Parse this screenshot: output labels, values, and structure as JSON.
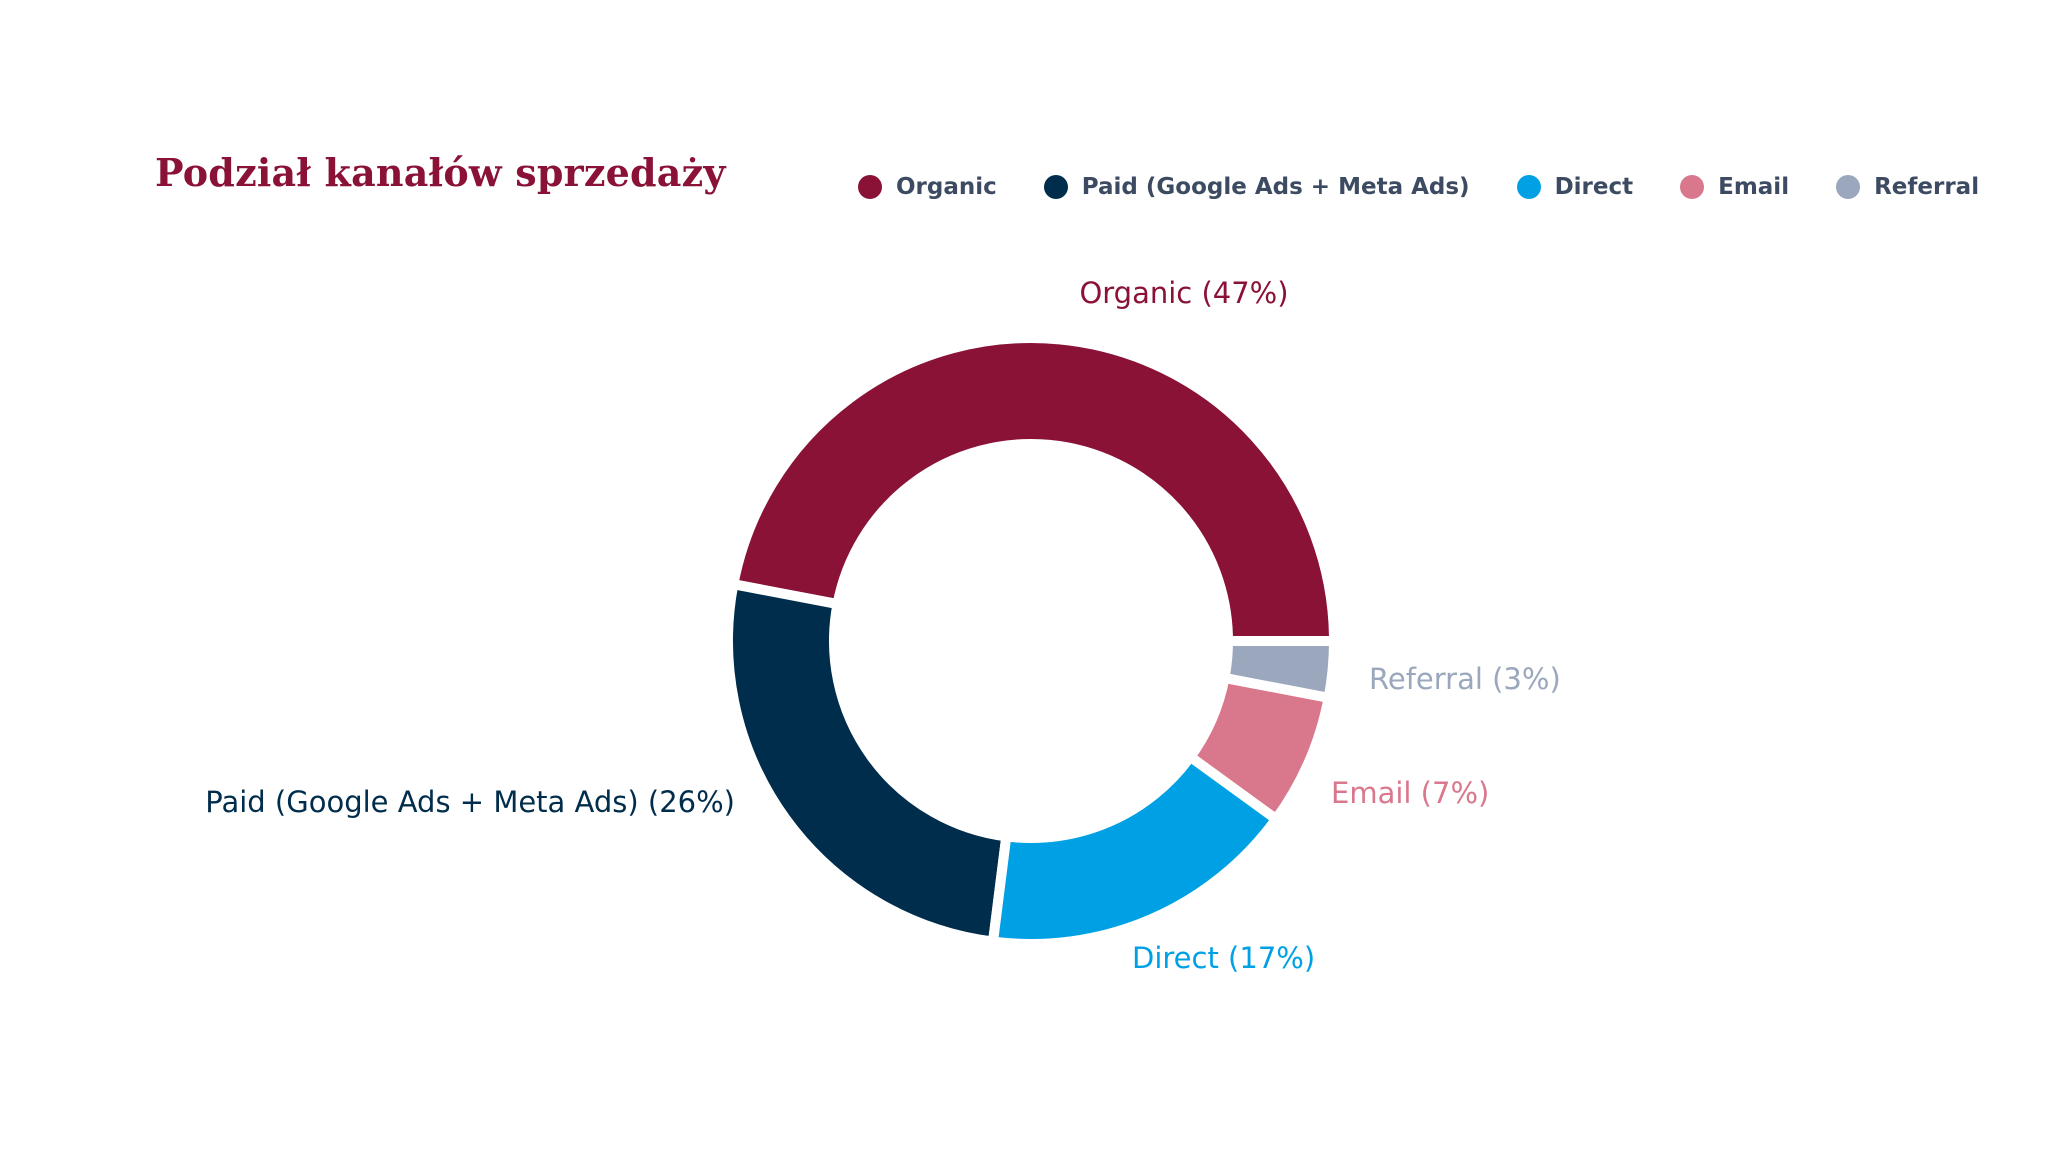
{
  "colors": {
    "title": "#8a1236",
    "legend_text": "#3d4b62"
  },
  "chart_data": {
    "type": "pie",
    "variant": "donut",
    "title": "Podział kanałów sprzedaży",
    "legend_position": "top-right",
    "slices": [
      {
        "name": "Organic",
        "value": 47,
        "color": "#8a1236",
        "label": "Organic (47%)"
      },
      {
        "name": "Paid (Google Ads + Meta Ads)",
        "value": 26,
        "color": "#002d4b",
        "label": "Paid (Google Ads + Meta Ads) (26%)"
      },
      {
        "name": "Direct",
        "value": 17,
        "color": "#00a1e4",
        "label": "Direct (17%)"
      },
      {
        "name": "Email",
        "value": 7,
        "color": "#d9788c",
        "label": "Email (7%)"
      },
      {
        "name": "Referral",
        "value": 3,
        "color": "#9aa7bc",
        "label": "Referral (3%)"
      }
    ]
  }
}
